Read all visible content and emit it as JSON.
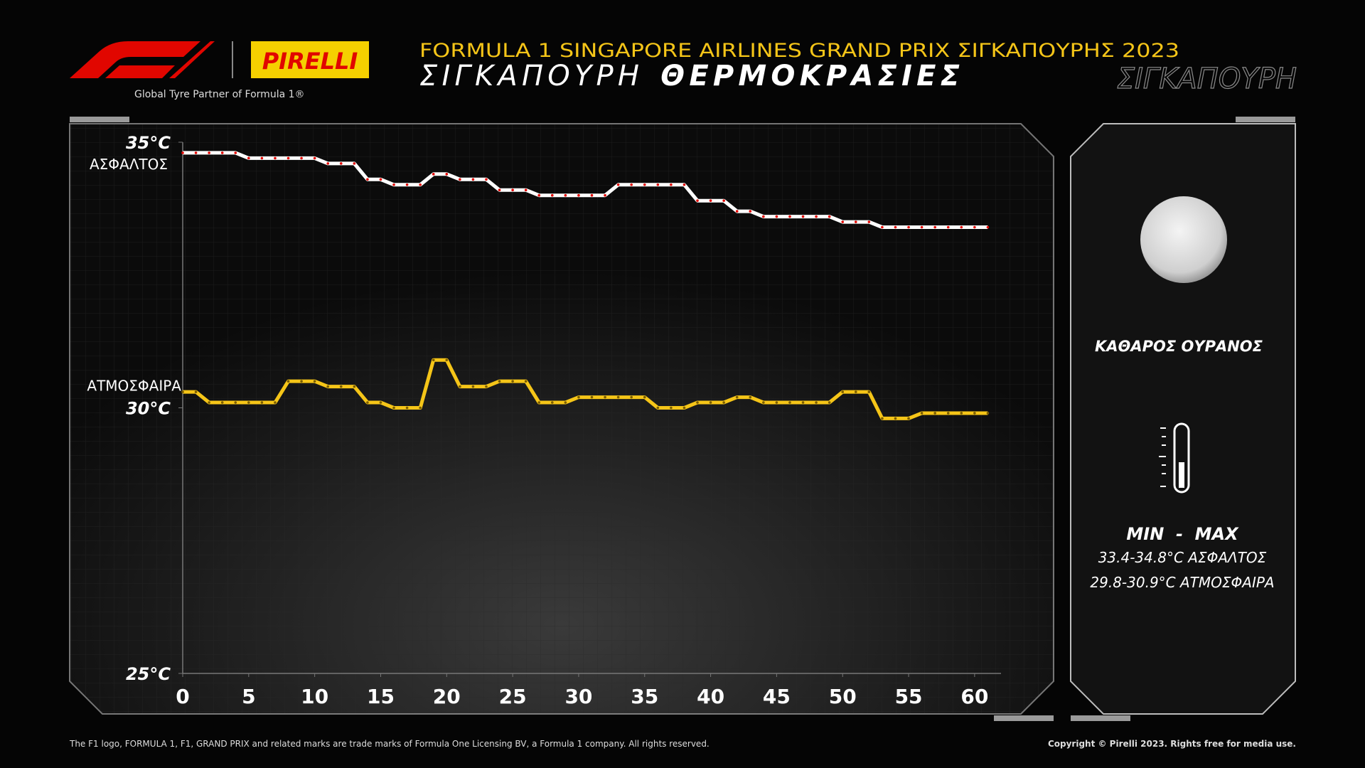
{
  "header": {
    "partner_logo": "PIRELLI",
    "tagline": "Global Tyre Partner of Formula 1®",
    "title": "FORMULA 1 SINGAPORE AIRLINES GRAND PRIX ΣΙΓΚΑΠΟΥΡΗΣ 2023",
    "subtitle_light": "ΣΙΓΚΑΠΟΥΡΗ",
    "subtitle_bold": "ΘΕΡΜΟΚΡΑΣΙΕΣ",
    "watermark": "ΣΙΓΚΑΠΟΥΡΗ"
  },
  "panel": {
    "sky": "ΚΑΘΑΡΟΣ ΟΥΡΑΝΟΣ",
    "minmax_title": "MIN  -  MAX",
    "asphalt_range": "33.4-34.8°C ΑΣΦΑΛΤΟΣ",
    "air_range": "29.8-30.9°C ΑΤΜΟΣΦΑΙΡΑ"
  },
  "footer": {
    "left": "The F1 logo, FORMULA 1, F1, GRAND PRIX and related marks are trade marks of Formula One Licensing BV, a Formula 1 company. All rights reserved.",
    "right": "Copyright © Pirelli 2023. Rights free for media use."
  },
  "chart_data": {
    "type": "line",
    "x": [
      0,
      1,
      2,
      3,
      4,
      5,
      6,
      7,
      8,
      9,
      10,
      11,
      12,
      13,
      14,
      15,
      16,
      17,
      18,
      19,
      20,
      21,
      22,
      23,
      24,
      25,
      26,
      27,
      28,
      29,
      30,
      31,
      32,
      33,
      34,
      35,
      36,
      37,
      38,
      39,
      40,
      41,
      42,
      43,
      44,
      45,
      46,
      47,
      48,
      49,
      50,
      51,
      52,
      53,
      54,
      55,
      56,
      57,
      58,
      59,
      60,
      61
    ],
    "series": [
      {
        "name": "ΑΣΦΑΛΤΟΣ",
        "color": "#ffffff",
        "marker_color": "#e10600",
        "values": [
          34.8,
          34.8,
          34.8,
          34.8,
          34.8,
          34.7,
          34.7,
          34.7,
          34.7,
          34.7,
          34.7,
          34.6,
          34.6,
          34.6,
          34.3,
          34.3,
          34.2,
          34.2,
          34.2,
          34.4,
          34.4,
          34.3,
          34.3,
          34.3,
          34.1,
          34.1,
          34.1,
          34.0,
          34.0,
          34.0,
          34.0,
          34.0,
          34.0,
          34.2,
          34.2,
          34.2,
          34.2,
          34.2,
          34.2,
          33.9,
          33.9,
          33.9,
          33.7,
          33.7,
          33.6,
          33.6,
          33.6,
          33.6,
          33.6,
          33.6,
          33.5,
          33.5,
          33.5,
          33.4,
          33.4,
          33.4,
          33.4,
          33.4,
          33.4,
          33.4,
          33.4,
          33.4
        ]
      },
      {
        "name": "ΑΤΜΟΣΦΑΙΡΑ",
        "color": "#f5c518",
        "marker_color": "#7a5c00",
        "values": [
          30.3,
          30.3,
          30.1,
          30.1,
          30.1,
          30.1,
          30.1,
          30.1,
          30.5,
          30.5,
          30.5,
          30.4,
          30.4,
          30.4,
          30.1,
          30.1,
          30.0,
          30.0,
          30.0,
          30.9,
          30.9,
          30.4,
          30.4,
          30.4,
          30.5,
          30.5,
          30.5,
          30.1,
          30.1,
          30.1,
          30.2,
          30.2,
          30.2,
          30.2,
          30.2,
          30.2,
          30.0,
          30.0,
          30.0,
          30.1,
          30.1,
          30.1,
          30.2,
          30.2,
          30.1,
          30.1,
          30.1,
          30.1,
          30.1,
          30.1,
          30.3,
          30.3,
          30.3,
          29.8,
          29.8,
          29.8,
          29.9,
          29.9,
          29.9,
          29.9,
          29.9,
          29.9
        ]
      }
    ],
    "xlim": [
      0,
      62
    ],
    "xticks": [
      0,
      5,
      10,
      15,
      20,
      25,
      30,
      35,
      40,
      45,
      50,
      55,
      60
    ],
    "ylim": [
      25,
      35
    ],
    "yticks": [
      {
        "value": 25,
        "label": "25°C"
      },
      {
        "value": 30,
        "label": "30°C"
      },
      {
        "value": 35,
        "label": "35°C"
      }
    ]
  }
}
